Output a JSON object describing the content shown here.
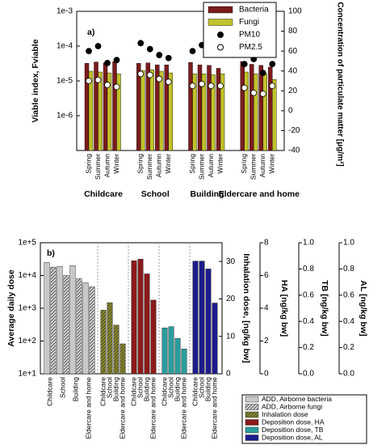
{
  "chart_data": [
    {
      "type": "bar",
      "panel": "a)",
      "ylabel": "Viable index, Fviable",
      "y2label": "Concentration of particulate matter [μg/m³]",
      "groups": [
        "Childcare",
        "School",
        "Building",
        "Eldercare and home"
      ],
      "categories": [
        "Spring",
        "Summer",
        "Autumn",
        "Winter"
      ],
      "log_y": true,
      "ylim": [
        1e-07,
        0.001
      ],
      "yticks": [
        {
          "value": 0.001,
          "label": "1e-3"
        },
        {
          "value": 0.0001,
          "label": "1e-4"
        },
        {
          "value": 1e-05,
          "label": "1e-5"
        },
        {
          "value": 1e-06,
          "label": "1e-6"
        }
      ],
      "y2lim": [
        -40,
        100
      ],
      "y2ticks": [
        -40,
        -20,
        0,
        20,
        40,
        60,
        80,
        100
      ],
      "legend": "upper right",
      "series": [
        {
          "name": "Bacteria",
          "type": "bar",
          "color": "#7b1c1c",
          "values": [
            [
              3.2e-05,
              3.5e-05,
              3.3e-05,
              3.6e-05
            ],
            [
              3.2e-05,
              3.3e-05,
              2.9e-05,
              2.9e-05
            ],
            [
              3.4e-05,
              2.9e-05,
              2.8e-05,
              2.3e-05
            ],
            [
              3.6e-05,
              3e-05,
              2.8e-05,
              2.5e-05
            ]
          ]
        },
        {
          "name": "Fungi",
          "type": "bar",
          "color": "#c2c22c",
          "values": [
            [
              1.9e-05,
              1.8e-05,
              1.7e-05,
              1.6e-05
            ],
            [
              2e-05,
              2.1e-05,
              1.9e-05,
              1.7e-05
            ],
            [
              1.6e-05,
              1.6e-05,
              1.5e-05,
              1.6e-05
            ],
            [
              1.8e-05,
              1.6e-05,
              1.6e-05,
              1.1e-05
            ]
          ]
        },
        {
          "name": "PM10",
          "type": "scatter",
          "axis": "y2",
          "color": "#000000",
          "values": [
            [
              60,
              65,
              48,
              51
            ],
            [
              68,
              62,
              56,
              53
            ],
            [
              60,
              66,
              57,
              61
            ],
            [
              47,
              52,
              38,
              47
            ]
          ]
        },
        {
          "name": "PM2.5",
          "type": "scatter",
          "axis": "y2",
          "color": "#ffffff",
          "values": [
            [
              30,
              31,
              26,
              24
            ],
            [
              37,
              36,
              32,
              29
            ],
            [
              25,
              27,
              25,
              25
            ],
            [
              23,
              18,
              17,
              25
            ]
          ]
        }
      ]
    },
    {
      "type": "bar",
      "panel": "b)",
      "ylabel": "Average daily dose",
      "categories": [
        "Childcare",
        "School",
        "Building",
        "Eldercare and home"
      ],
      "log_y": true,
      "ylim": [
        10,
        100000
      ],
      "yticks": [
        {
          "value": 100000,
          "label": "1e+5"
        },
        {
          "value": 10000,
          "label": "1e+4"
        },
        {
          "value": 1000,
          "label": "1e+3"
        },
        {
          "value": 100,
          "label": "1e+2"
        },
        {
          "value": 10,
          "label": "1e+1"
        }
      ],
      "y2label": "Inhalation dose, [ng/kg bw]",
      "y2lim": [
        0,
        35
      ],
      "y2ticks": [
        0,
        10,
        20,
        30
      ],
      "y3label": "HA [ng/kg bw]",
      "y3lim": [
        0,
        8
      ],
      "y3ticks": [
        0,
        2,
        4,
        6,
        8
      ],
      "y4label": "TB [ng/kg bw]",
      "y4lim": [
        0,
        1
      ],
      "y4ticks": [
        {
          "value": 0,
          "label": "0.0"
        },
        0.2,
        0.4,
        0.6,
        0.8,
        {
          "value": 1,
          "label": "1.0"
        }
      ],
      "y5label": "AL [ng/kg bw]",
      "y5lim": [
        0,
        1
      ],
      "y5ticks": [
        {
          "value": 0,
          "label": "0.0"
        },
        0.2,
        0.4,
        0.6,
        0.8,
        {
          "value": 1,
          "label": "1.0"
        }
      ],
      "legend": "lower right",
      "series": [
        {
          "name": "ADD, Airborne bacteria",
          "color": "#c8c8c8",
          "values": [
            25000,
            19000,
            20000,
            6000
          ]
        },
        {
          "name": "ADD, Airborne fungi",
          "color": "#d8d8d8",
          "hatch": true,
          "values": [
            18000,
            10000,
            8000,
            4500
          ]
        },
        {
          "name": "Inhalation dose",
          "axis": "y2",
          "color": "#8a8a22",
          "hatch": true,
          "values": [
            17,
            19,
            13,
            8
          ]
        },
        {
          "name": "Deposition dose, HA",
          "axis": "y3",
          "color": "#8b1a1a",
          "values": [
            6.9,
            7.0,
            6.1,
            4.5
          ]
        },
        {
          "name": "Deposition dose, TB",
          "axis": "y4",
          "color": "#2a9d9d",
          "values": [
            0.35,
            0.36,
            0.27,
            0.19
          ]
        },
        {
          "name": "Deposition dose, AL",
          "axis": "y5",
          "color": "#1c1c8c",
          "values": [
            0.86,
            0.86,
            0.8,
            0.54
          ]
        }
      ]
    }
  ]
}
